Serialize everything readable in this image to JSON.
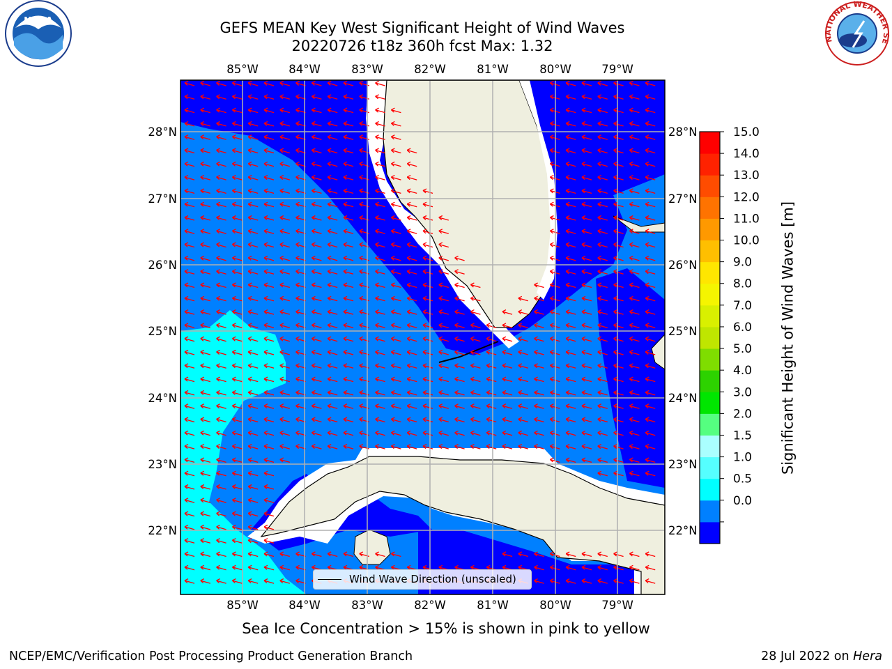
{
  "title": {
    "line1": "GEFS MEAN Key West Significant Height of Wind Waves",
    "line2": "20220726 t18z 360h fcst   Max: 1.32"
  },
  "logos": {
    "left": "NOAA",
    "right": "NATIONAL WEATHER SERVICE"
  },
  "map": {
    "lon_labels": [
      "85°W",
      "84°W",
      "83°W",
      "82°W",
      "81°W",
      "80°W",
      "79°W"
    ],
    "lat_labels": [
      "28°N",
      "27°N",
      "26°N",
      "25°N",
      "24°N",
      "23°N",
      "22°N"
    ],
    "legend_label": "Wind Wave Direction (unscaled)",
    "arrow_color": "#ff0000",
    "land_color": "#efefdf",
    "grid_color": "#b0b0b0"
  },
  "colorbar": {
    "label": "Significant Height of Wind Waves [m]",
    "ticks": [
      "15.0",
      "14.0",
      "13.0",
      "12.0",
      "11.0",
      "10.0",
      "9.0",
      "8.0",
      "7.0",
      "6.0",
      "5.0",
      "4.0",
      "3.0",
      "2.0",
      "1.5",
      "1.0",
      "0.5",
      "0.0"
    ],
    "colors": [
      "#0000ff",
      "#0080ff",
      "#00ffff",
      "#55ffff",
      "#aaffff",
      "#55ff80",
      "#00e600",
      "#2dd200",
      "#7fdd00",
      "#bfe600",
      "#d9f000",
      "#f5f500",
      "#ffe600",
      "#ffbf00",
      "#ff9900",
      "#ff7300",
      "#ff4c00",
      "#ff2200",
      "#ff0000"
    ]
  },
  "footer": {
    "note": "Sea Ice Concentration > 15% is shown in pink to yellow",
    "left": "NCEP/EMC/Verification Post Processing Product Generation Branch",
    "date": "28 Jul 2022 on",
    "machine": "Hera"
  }
}
